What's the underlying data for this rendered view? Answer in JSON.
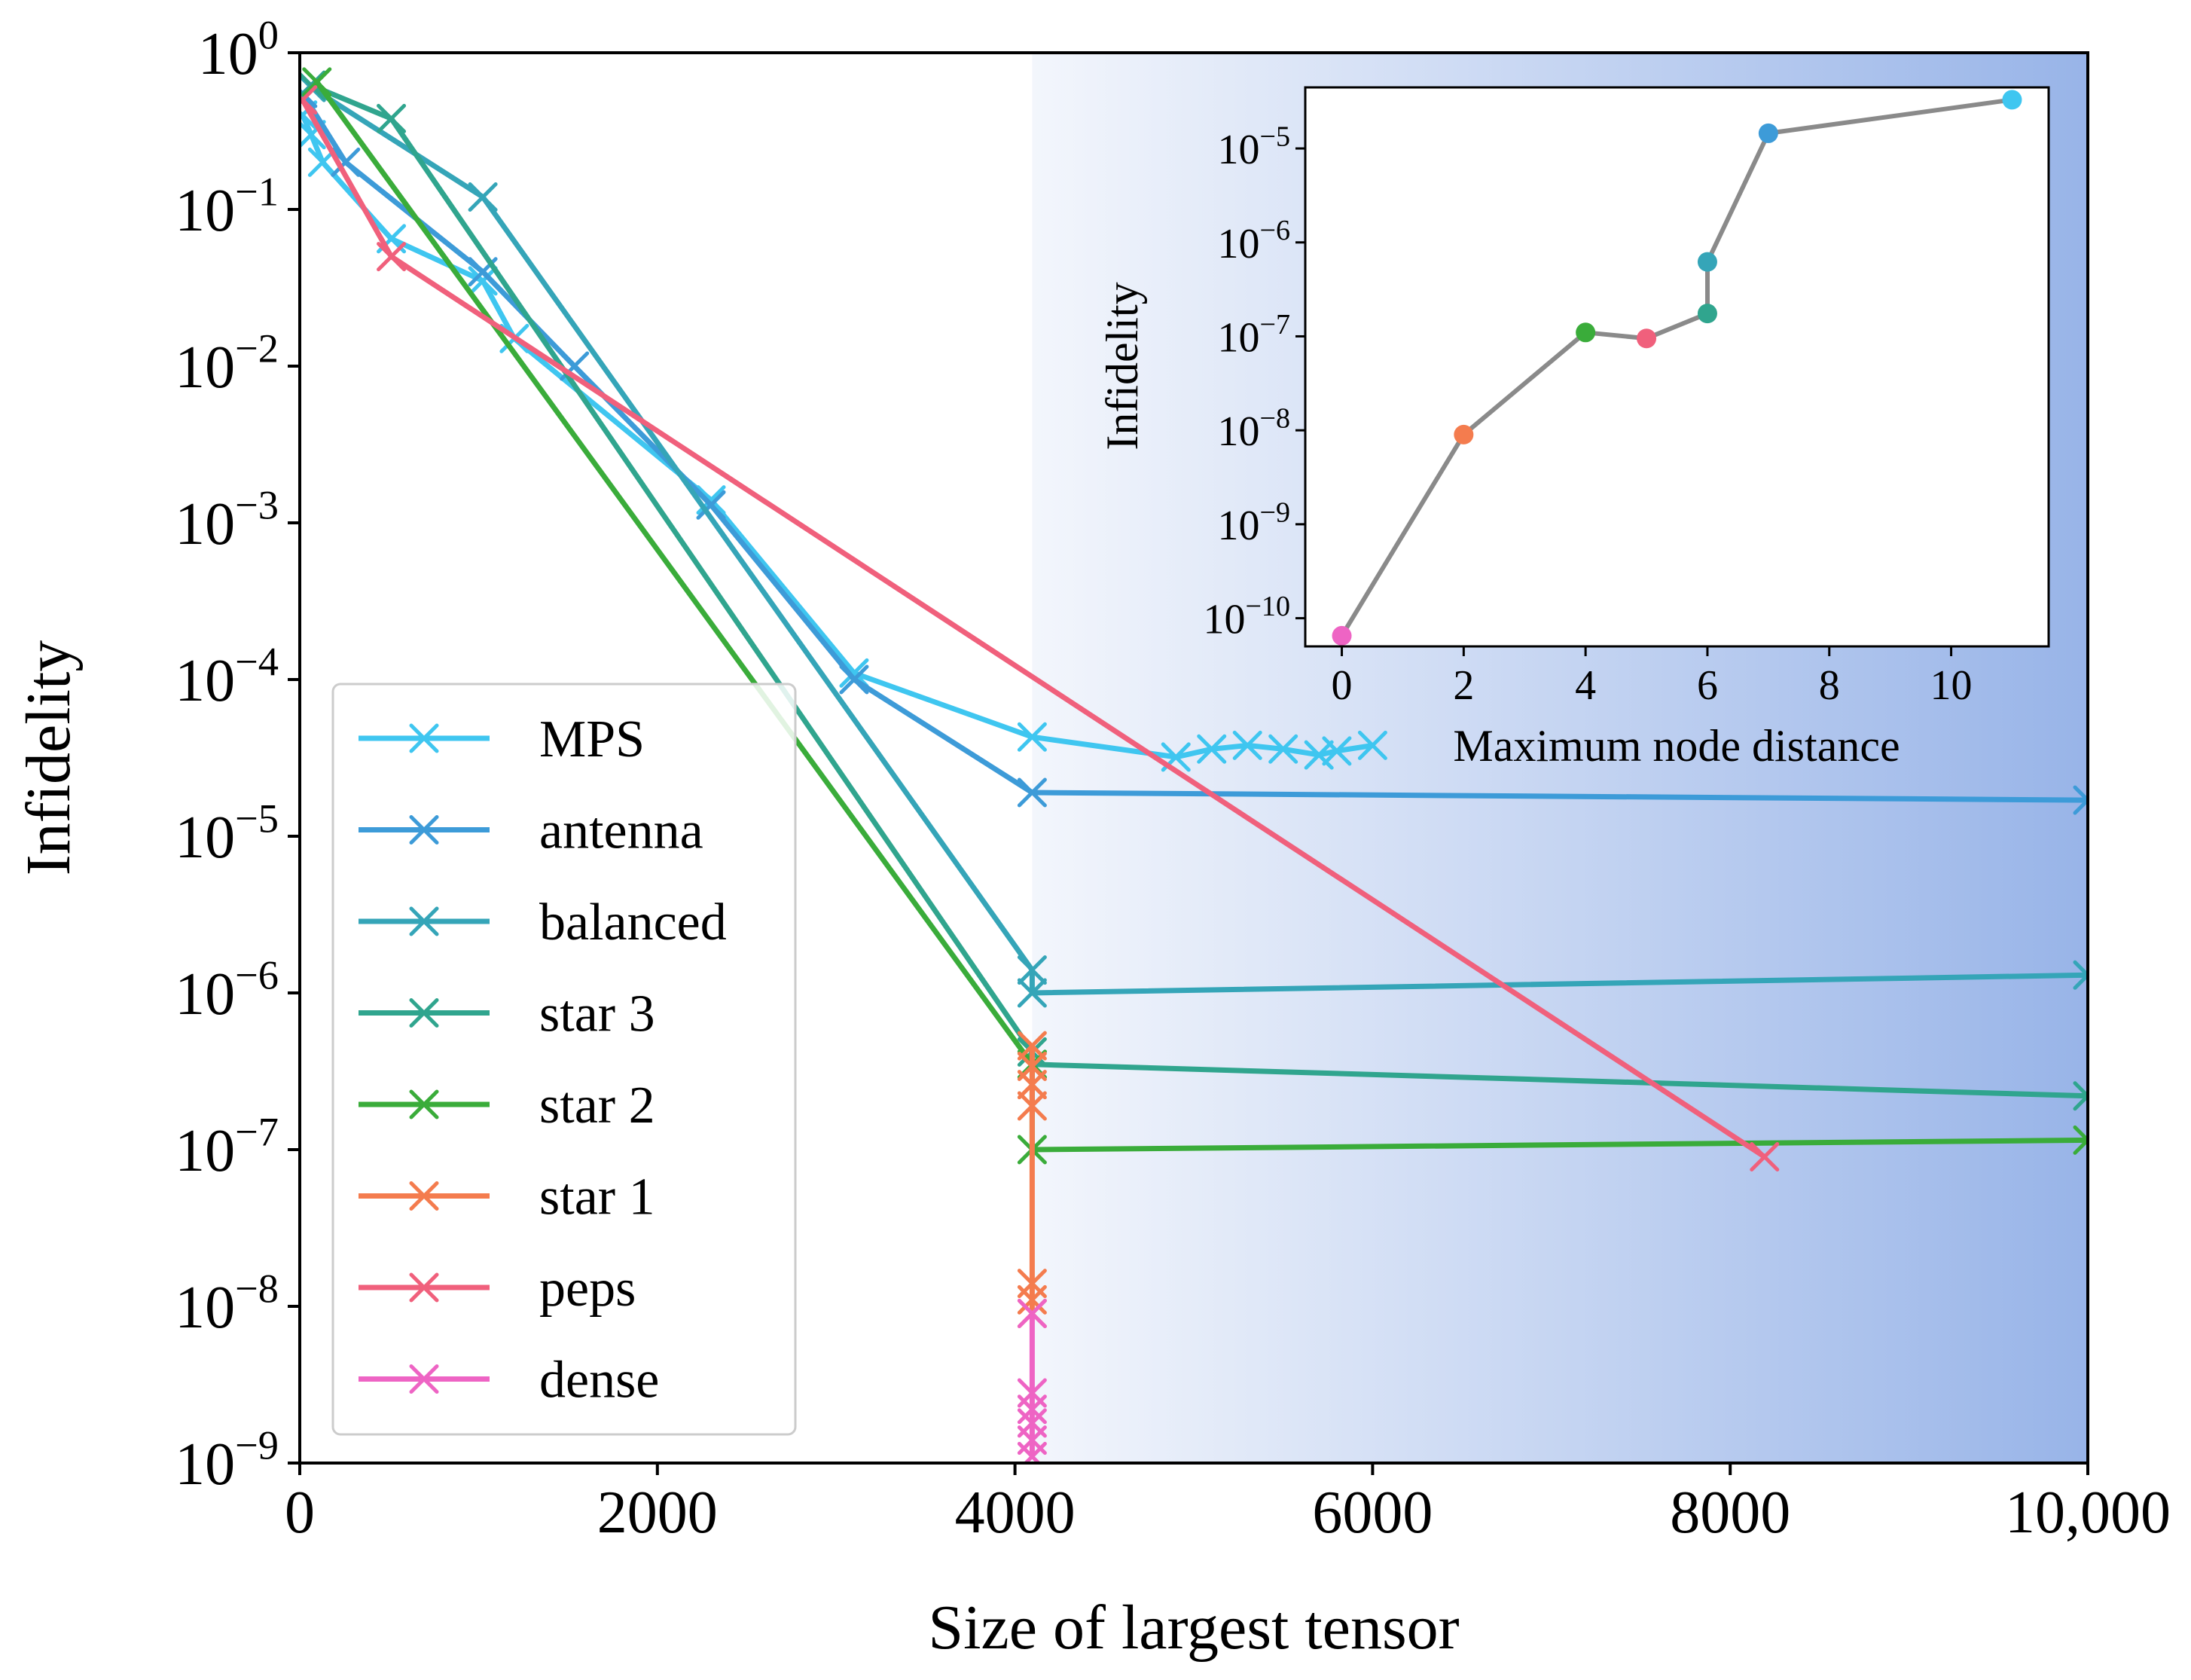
{
  "chart_data": [
    {
      "type": "line",
      "title": "",
      "xlabel": "Size of largest tensor",
      "ylabel": "Infidelity",
      "xlim": [
        0,
        10000
      ],
      "ylim_log10": [
        -9,
        0
      ],
      "y_scale": "log",
      "x_ticks": [
        0,
        2000,
        4000,
        6000,
        8000,
        10000
      ],
      "x_tick_labels": [
        "0",
        "2000",
        "4000",
        "6000",
        "8000",
        "10,000"
      ],
      "y_ticks_log10": [
        0,
        -1,
        -2,
        -3,
        -4,
        -5,
        -6,
        -7,
        -8,
        -9
      ],
      "y_tick_labels": [
        "0",
        "−1",
        "−2",
        "−3",
        "−4",
        "−5",
        "−6",
        "−7",
        "−8",
        "−9"
      ],
      "y_tick_base": "10",
      "grid": false,
      "legend_position": "lower-left",
      "shaded_region": {
        "x_from": 4096,
        "x_to": 10000,
        "color_start": "#f3f6fc",
        "color_end": "#98b4e8"
      },
      "series": [
        {
          "name": "MPS",
          "color": "#3fc6f0",
          "x": [
            16,
            64,
            128,
            512,
            1024,
            1200,
            2300,
            3100,
            4096,
            4900,
            5100,
            5300,
            5500,
            5700,
            5800,
            6000
          ],
          "y": [
            0.4,
            0.3,
            0.2,
            0.065,
            0.035,
            0.015,
            0.0014,
            0.00011,
            4.3e-05,
            3.2e-05,
            3.6e-05,
            3.8e-05,
            3.6e-05,
            3.3e-05,
            3.5e-05,
            3.8e-05
          ]
        },
        {
          "name": "antenna",
          "color": "#3d9bd8",
          "x": [
            16,
            256,
            1024,
            1536,
            2300,
            3100,
            4096,
            10000
          ],
          "y": [
            0.55,
            0.2,
            0.04,
            0.01,
            0.0013,
            0.0001,
            1.9e-05,
            1.7e-05
          ]
        },
        {
          "name": "balanced",
          "color": "#35a5b8",
          "x": [
            64,
            1024,
            4096,
            4096,
            10000
          ],
          "y": [
            0.6,
            0.12,
            1.4e-06,
            1e-06,
            1.3e-06
          ]
        },
        {
          "name": "star 3",
          "color": "#30a58e",
          "x": [
            64,
            512,
            4096,
            4096,
            10000
          ],
          "y": [
            0.62,
            0.38,
            4.2e-07,
            3.5e-07,
            2.2e-07
          ]
        },
        {
          "name": "star 2",
          "color": "#3aac3a",
          "x": [
            96,
            4096,
            4096,
            10000
          ],
          "y": [
            0.65,
            3.5e-07,
            1e-07,
            1.15e-07
          ]
        },
        {
          "name": "star 1",
          "color": "#f47c4e",
          "x": [
            4096,
            4096,
            4096,
            4096,
            4096,
            4096,
            4096
          ],
          "y": [
            4.6e-07,
            3.4e-07,
            2.6e-07,
            1.9e-07,
            1.4e-08,
            1.1e-08,
            9e-09
          ]
        },
        {
          "name": "peps",
          "color": "#f0607c",
          "x": [
            16,
            512,
            8192
          ],
          "y": [
            0.5,
            0.05,
            9e-08
          ]
        },
        {
          "name": "dense",
          "color": "#ee64c4",
          "x": [
            4096,
            4096,
            4096,
            4096,
            4096,
            4096
          ],
          "y": [
            9e-09,
            2.8e-09,
            2.2e-09,
            1.8e-09,
            1.4e-09,
            1.1e-09
          ]
        }
      ]
    },
    {
      "type": "line",
      "title": "",
      "xlabel": "Maximum node distance",
      "ylabel": "Infidelity",
      "xlim": [
        -0.6,
        11.6
      ],
      "ylim_log10": [
        -10.3,
        -4.35
      ],
      "y_scale": "log",
      "x_ticks": [
        0,
        2,
        4,
        6,
        8,
        10
      ],
      "x_tick_labels": [
        "0",
        "2",
        "4",
        "6",
        "8",
        "10"
      ],
      "y_ticks_log10": [
        -5,
        -6,
        -7,
        -8,
        -9,
        -10
      ],
      "y_tick_labels": [
        "−5",
        "−6",
        "−7",
        "−8",
        "−9",
        "−10"
      ],
      "y_tick_base": "10",
      "grid": false,
      "legend_position": "none",
      "line_color": "#8a8a8a",
      "points": [
        {
          "x": 0,
          "y": 6.5e-11,
          "color": "#ee64c4"
        },
        {
          "x": 2,
          "y": 9e-09,
          "color": "#f47c4e"
        },
        {
          "x": 4,
          "y": 1.1e-07,
          "color": "#3aac3a"
        },
        {
          "x": 5,
          "y": 9.5e-08,
          "color": "#f0607c"
        },
        {
          "x": 6,
          "y": 1.75e-07,
          "color": "#30a58e"
        },
        {
          "x": 6,
          "y": 6.2e-07,
          "color": "#35a5b8"
        },
        {
          "x": 7,
          "y": 1.45e-05,
          "color": "#3d9bd8"
        },
        {
          "x": 11,
          "y": 3.3e-05,
          "color": "#3fc6f0"
        }
      ]
    }
  ]
}
